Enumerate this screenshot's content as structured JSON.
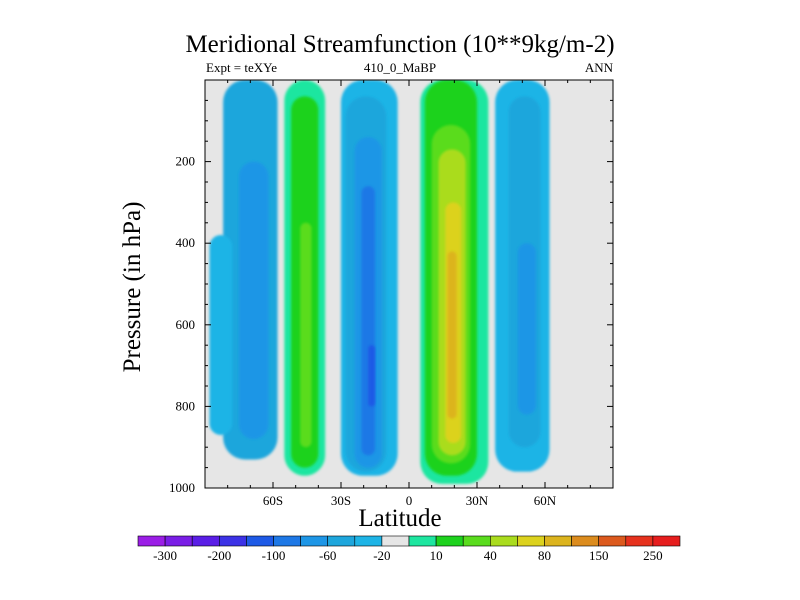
{
  "chart_data": {
    "type": "heatmap",
    "title": "Meridional Streamfunction (10**9kg/m-2)",
    "left_string": "Expt = teXYe",
    "center_string": "410_0_MaBP",
    "right_string": "ANN",
    "xlabel": "Latitude",
    "ylabel": "Pressure (in hPa)",
    "xlim": [
      -90,
      90
    ],
    "ylim": [
      0,
      1000
    ],
    "y_axis_inverted": true,
    "x_ticks": [
      {
        "value": -60,
        "label": "60S"
      },
      {
        "value": -30,
        "label": "30S"
      },
      {
        "value": 0,
        "label": "0"
      },
      {
        "value": 30,
        "label": "30N"
      },
      {
        "value": 60,
        "label": "60N"
      }
    ],
    "y_ticks": [
      {
        "value": 200,
        "label": "200"
      },
      {
        "value": 400,
        "label": "400"
      },
      {
        "value": 600,
        "label": "600"
      },
      {
        "value": 800,
        "label": "800"
      },
      {
        "value": 1000,
        "label": "1000"
      }
    ],
    "background_color": "#e6e6e6",
    "colorbar": {
      "colors": [
        "#9b1ee6",
        "#7a1ee6",
        "#5a1ee6",
        "#3c32e6",
        "#1e5ae6",
        "#1e78e6",
        "#1e96e6",
        "#1ea6dc",
        "#1eb4e6",
        "#e6e6e6",
        "#1ee6a0",
        "#1ed21e",
        "#5adc1e",
        "#aadc1e",
        "#dcd21e",
        "#dcb41e",
        "#dc8c1e",
        "#dc5a1e",
        "#e6321e",
        "#e61e1e"
      ],
      "labels": [
        "-300",
        "-200",
        "-100",
        "-60",
        "-20",
        "10",
        "40",
        "80",
        "150",
        "250"
      ],
      "label_after_box": [
        1,
        3,
        5,
        7,
        9,
        11,
        13,
        15,
        17,
        19
      ]
    },
    "cells": [
      {
        "lon_range": [
          -82,
          -58
        ],
        "top": 0,
        "bottom": 930,
        "level": 7
      },
      {
        "lon_range": [
          -88,
          -78
        ],
        "top": 380,
        "bottom": 870,
        "level": 8
      },
      {
        "lon_range": [
          -75,
          -62
        ],
        "top": 200,
        "bottom": 880,
        "level": 6
      },
      {
        "lon_range": [
          -55,
          -37
        ],
        "top": 0,
        "bottom": 970,
        "level": 10
      },
      {
        "lon_range": [
          -52,
          -40
        ],
        "top": 40,
        "bottom": 950,
        "level": 11
      },
      {
        "lon_range": [
          -48,
          -43
        ],
        "top": 350,
        "bottom": 900,
        "level": 12
      },
      {
        "lon_range": [
          -30,
          -5
        ],
        "top": 0,
        "bottom": 970,
        "level": 8
      },
      {
        "lon_range": [
          -28,
          -10
        ],
        "top": 40,
        "bottom": 960,
        "level": 7
      },
      {
        "lon_range": [
          -24,
          -12
        ],
        "top": 140,
        "bottom": 950,
        "level": 6
      },
      {
        "lon_range": [
          -21,
          -15
        ],
        "top": 260,
        "bottom": 920,
        "level": 5
      },
      {
        "lon_range": [
          -18,
          -15
        ],
        "top": 650,
        "bottom": 800,
        "level": 4
      },
      {
        "lon_range": [
          5,
          35
        ],
        "top": 0,
        "bottom": 990,
        "level": 10
      },
      {
        "lon_range": [
          7,
          30
        ],
        "top": 0,
        "bottom": 970,
        "level": 11
      },
      {
        "lon_range": [
          10,
          27
        ],
        "top": 110,
        "bottom": 940,
        "level": 12
      },
      {
        "lon_range": [
          13,
          25
        ],
        "top": 170,
        "bottom": 920,
        "level": 13
      },
      {
        "lon_range": [
          16,
          23
        ],
        "top": 300,
        "bottom": 890,
        "level": 14
      },
      {
        "lon_range": [
          17,
          21
        ],
        "top": 420,
        "bottom": 830,
        "level": 15
      },
      {
        "lon_range": [
          38,
          62
        ],
        "top": 0,
        "bottom": 960,
        "level": 8
      },
      {
        "lon_range": [
          44,
          58
        ],
        "top": 40,
        "bottom": 900,
        "level": 7
      },
      {
        "lon_range": [
          48,
          56
        ],
        "top": 400,
        "bottom": 820,
        "level": 6
      }
    ]
  }
}
